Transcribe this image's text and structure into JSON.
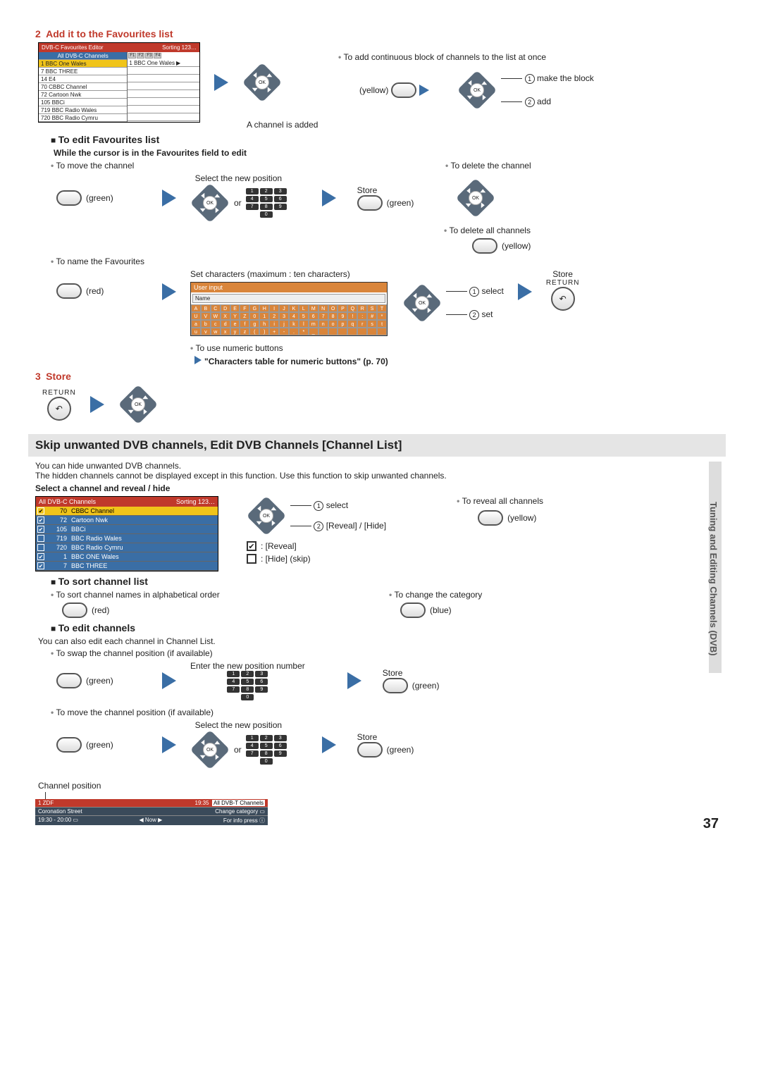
{
  "page_number": "37",
  "side_tab_text": "Tuning and Editing Channels (DVB)",
  "step2": {
    "num": "2",
    "title": "Add it to the Favourites list",
    "editor": {
      "title": "DVB-C Favourites Editor",
      "sort": "Sorting 123…",
      "left_header": "All DVB-C Channels",
      "left_rows": [
        "1  BBC One Wales",
        "7  BBC THREE",
        "14  E4",
        "70  CBBC Channel",
        "72  Cartoon Nwk",
        "105  BBCi",
        "719  BBC Radio Wales",
        "720  BBC Radio Cymru"
      ],
      "right_fav_row": "1  BBC One Wales"
    },
    "added_text": "A channel is added",
    "continuous_text": "To add continuous block of channels to the list at once",
    "yellow": "(yellow)",
    "make_block": "make the block",
    "add": "add"
  },
  "edit_fav": {
    "heading": "To edit Favourites list",
    "while_text": "While the cursor is in the Favourites field to edit",
    "move_text": "To move the channel",
    "delete_text": "To delete the channel",
    "delete_all_text": "To delete all channels",
    "select_pos": "Select the new position",
    "store": "Store",
    "green": "(green)",
    "yellow": "(yellow)",
    "or": "or",
    "name_fav": "To name the Favourites",
    "red": "(red)",
    "set_chars": "Set characters (maximum : ten characters)",
    "user_input": "User input",
    "name_label": "Name",
    "select": "select",
    "set": "set",
    "return": "RETURN",
    "use_numeric": "To use numeric buttons",
    "chars_table": "\"Characters table for numeric buttons\" (p. 70)",
    "char_rows": [
      [
        "A",
        "B",
        "C",
        "D",
        "E",
        "F",
        "G",
        "H",
        "I",
        "J",
        "K",
        "L",
        "M",
        "N",
        "O",
        "P",
        "Q",
        "R",
        "S",
        "T"
      ],
      [
        "U",
        "V",
        "W",
        "X",
        "Y",
        "Z",
        "0",
        "1",
        "2",
        "3",
        "4",
        "5",
        "6",
        "7",
        "8",
        "9",
        "!",
        ":",
        "#",
        "*"
      ],
      [
        "a",
        "b",
        "c",
        "d",
        "e",
        "f",
        "g",
        "h",
        "i",
        "j",
        "k",
        "l",
        "m",
        "n",
        "o",
        "p",
        "q",
        "r",
        "s",
        "t"
      ],
      [
        "u",
        "v",
        "w",
        "x",
        "y",
        "z",
        "(",
        ")",
        "+",
        "-",
        ".",
        "*",
        "_",
        " ",
        " ",
        " ",
        " ",
        " ",
        " ",
        " "
      ]
    ]
  },
  "step3": {
    "num": "3",
    "title": "Store",
    "return": "RETURN"
  },
  "skip": {
    "heading": "Skip unwanted DVB channels, Edit DVB Channels [Channel List]",
    "p1": "You can hide unwanted DVB channels.",
    "p2": "The hidden channels cannot be displayed except in this function. Use this function to skip unwanted channels.",
    "select_reveal": "Select a channel and reveal / hide",
    "list": {
      "title": "All DVB-C Channels",
      "sort": "Sorting 123…",
      "rows": [
        {
          "chk": true,
          "num": "70",
          "name": "CBBC Channel",
          "sel": true
        },
        {
          "chk": true,
          "num": "72",
          "name": "Cartoon Nwk"
        },
        {
          "chk": true,
          "num": "105",
          "name": "BBCi"
        },
        {
          "chk": false,
          "num": "719",
          "name": "BBC Radio Wales"
        },
        {
          "chk": false,
          "num": "720",
          "name": "BBC Radio Cymru"
        },
        {
          "chk": true,
          "num": "1",
          "name": "BBC ONE Wales"
        },
        {
          "chk": true,
          "num": "7",
          "name": "BBC THREE"
        }
      ]
    },
    "select": "select",
    "reveal_hide": "[Reveal] / [Hide]",
    "reveal": ": [Reveal]",
    "hide": ": [Hide] (skip)",
    "reveal_all": "To reveal all channels",
    "yellow": "(yellow)"
  },
  "sort": {
    "heading": "To sort channel list",
    "alpha": "To sort channel names in alphabetical order",
    "red": "(red)",
    "change_cat": "To change the category",
    "blue": "(blue)"
  },
  "edit_ch": {
    "heading": "To edit channels",
    "p1": "You can also edit each channel in Channel List.",
    "swap": "To swap the channel position (if available)",
    "enter_pos": "Enter the new position number",
    "store": "Store",
    "green": "(green)",
    "move": "To move the channel position (if available)",
    "select_pos": "Select the new position",
    "or": "or",
    "chan_pos": "Channel position"
  },
  "info_bar": {
    "r1_left": "1 ZDF",
    "r1_mid": "19:35",
    "r1_right": "All DVB-T Channels",
    "r2_left": "Coronation Street",
    "r2_right": "Change category ▭",
    "r3_left": "19:30 - 20:00 ▭",
    "r3_mid": "◀ Now ▶",
    "r3_right": "For info press ⓘ"
  },
  "keys": [
    "1",
    "2",
    "3",
    "4",
    "5",
    "6",
    "7",
    "8",
    "9",
    "0"
  ]
}
